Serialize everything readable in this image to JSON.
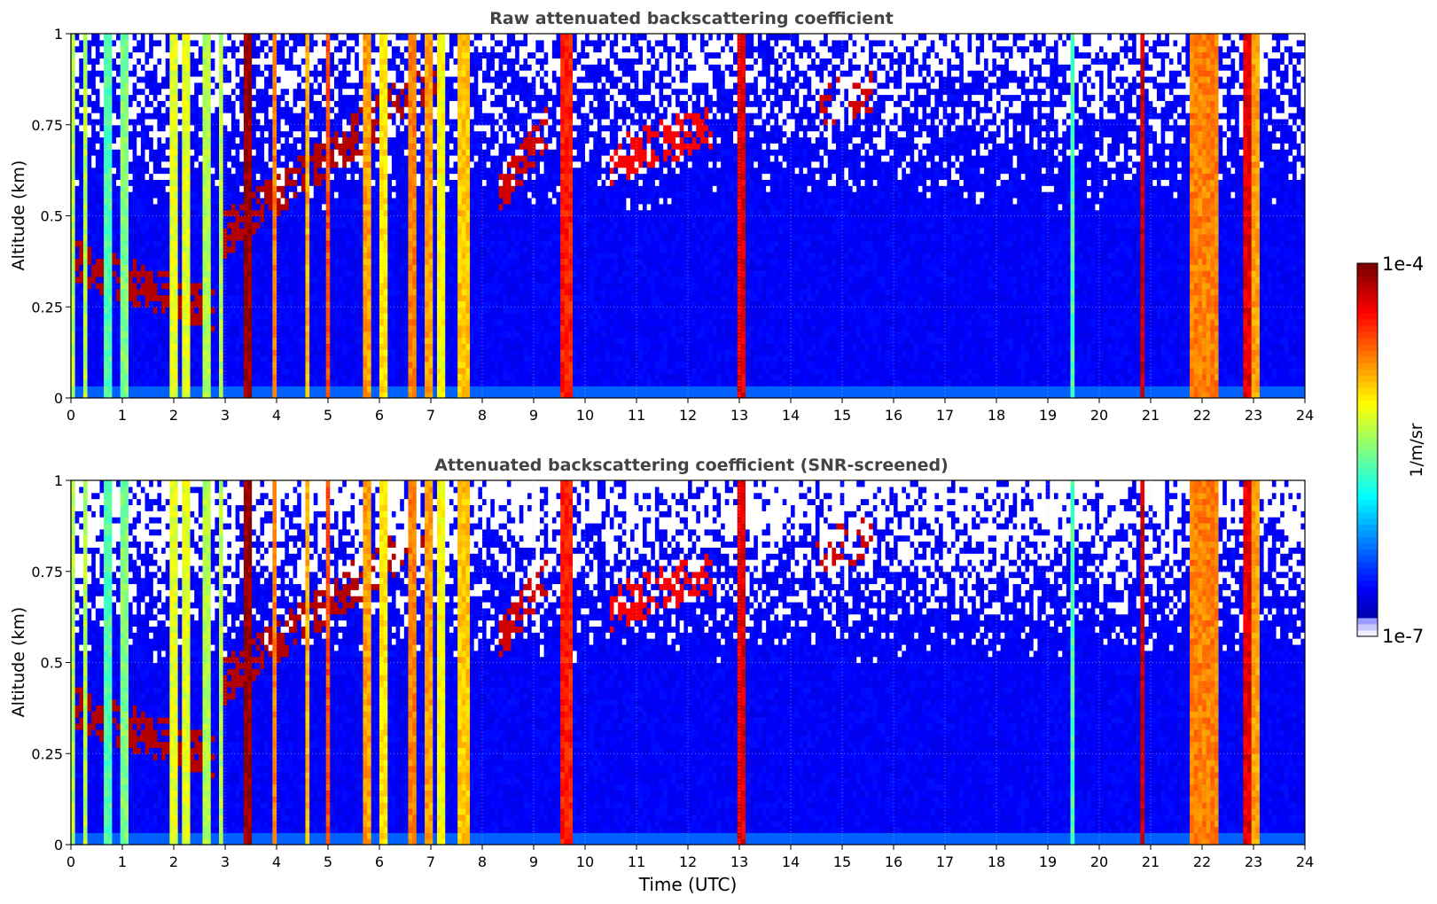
{
  "chart_data": [
    {
      "type": "heatmap",
      "title": "Raw attenuated backscattering coefficient",
      "xlabel": "",
      "ylabel": "Altitude (km)",
      "xlim": [
        0,
        24
      ],
      "ylim": [
        0,
        1
      ],
      "xticks": [
        "0",
        "1",
        "2",
        "3",
        "4",
        "5",
        "6",
        "7",
        "8",
        "9",
        "10",
        "11",
        "12",
        "13",
        "14",
        "15",
        "16",
        "17",
        "18",
        "19",
        "20",
        "21",
        "22",
        "23",
        "24"
      ],
      "yticks": [
        "0",
        "0.25",
        "0.5",
        "0.75",
        "1"
      ],
      "grid": true,
      "screened": false,
      "thick_layers": [
        {
          "x0": 0.0,
          "x1": 0.08,
          "level": 0.55
        },
        {
          "x0": 0.22,
          "x1": 0.32,
          "level": 0.55
        },
        {
          "x0": 0.68,
          "x1": 0.76,
          "level": 0.45
        },
        {
          "x0": 1.0,
          "x1": 1.08,
          "level": 0.5
        },
        {
          "x0": 1.95,
          "x1": 2.08,
          "level": 0.6
        },
        {
          "x0": 2.2,
          "x1": 2.3,
          "level": 0.6
        },
        {
          "x0": 2.55,
          "x1": 2.7,
          "level": 0.55
        },
        {
          "x0": 2.85,
          "x1": 2.95,
          "level": 0.55
        },
        {
          "x0": 3.33,
          "x1": 3.48,
          "level": 0.98
        },
        {
          "x0": 3.9,
          "x1": 4.0,
          "level": 0.75
        },
        {
          "x0": 4.55,
          "x1": 4.62,
          "level": 0.7
        },
        {
          "x0": 4.93,
          "x1": 5.03,
          "level": 0.8
        },
        {
          "x0": 5.7,
          "x1": 5.82,
          "level": 0.72
        },
        {
          "x0": 6.0,
          "x1": 6.15,
          "level": 0.65
        },
        {
          "x0": 6.6,
          "x1": 6.7,
          "level": 0.75
        },
        {
          "x0": 6.9,
          "x1": 7.05,
          "level": 0.72
        },
        {
          "x0": 7.1,
          "x1": 7.25,
          "level": 0.62
        },
        {
          "x0": 7.55,
          "x1": 7.78,
          "level": 0.68
        },
        {
          "x0": 9.55,
          "x1": 9.78,
          "level": 0.85
        },
        {
          "x0": 12.98,
          "x1": 13.1,
          "level": 0.9
        },
        {
          "x0": 19.42,
          "x1": 19.5,
          "level": 0.45
        },
        {
          "x0": 20.82,
          "x1": 20.9,
          "level": 0.92
        },
        {
          "x0": 21.8,
          "x1": 22.35,
          "level": 0.75
        },
        {
          "x0": 22.78,
          "x1": 22.92,
          "level": 0.9
        },
        {
          "x0": 22.95,
          "x1": 23.15,
          "level": 0.72
        }
      ],
      "elevated_layers": [
        {
          "x0": 0.0,
          "x1": 2.8,
          "y_start": 0.38,
          "y_end": 0.24,
          "level": 0.95
        },
        {
          "x0": 3.0,
          "x1": 7.2,
          "y_start": 0.45,
          "y_end": 0.9,
          "level": 0.95
        },
        {
          "x0": 8.3,
          "x1": 9.3,
          "y_start": 0.55,
          "y_end": 0.75,
          "level": 0.92
        },
        {
          "x0": 10.5,
          "x1": 12.5,
          "y_start": 0.65,
          "y_end": 0.75,
          "level": 0.88
        },
        {
          "x0": 14.5,
          "x1": 15.6,
          "y_start": 0.8,
          "y_end": 0.85,
          "level": 0.92
        }
      ]
    },
    {
      "type": "heatmap",
      "title": "Attenuated backscattering coefficient (SNR-screened)",
      "xlabel": "Time (UTC)",
      "ylabel": "Altitude (km)",
      "xlim": [
        0,
        24
      ],
      "ylim": [
        0,
        1
      ],
      "xticks": [
        "0",
        "1",
        "2",
        "3",
        "4",
        "5",
        "6",
        "7",
        "8",
        "9",
        "10",
        "11",
        "12",
        "13",
        "14",
        "15",
        "16",
        "17",
        "18",
        "19",
        "20",
        "21",
        "22",
        "23",
        "24"
      ],
      "yticks": [
        "0",
        "0.25",
        "0.5",
        "0.75",
        "1"
      ],
      "grid": true,
      "screened": true
    }
  ],
  "colorbar": {
    "label": "1/m/sr",
    "max_label": "1e-4",
    "min_label": "1e-7",
    "scale": "log",
    "colormap": "jet"
  },
  "colors": {
    "title": "#444444",
    "background_low": "#1a2ef0",
    "surface_band": "#3a6cff"
  }
}
